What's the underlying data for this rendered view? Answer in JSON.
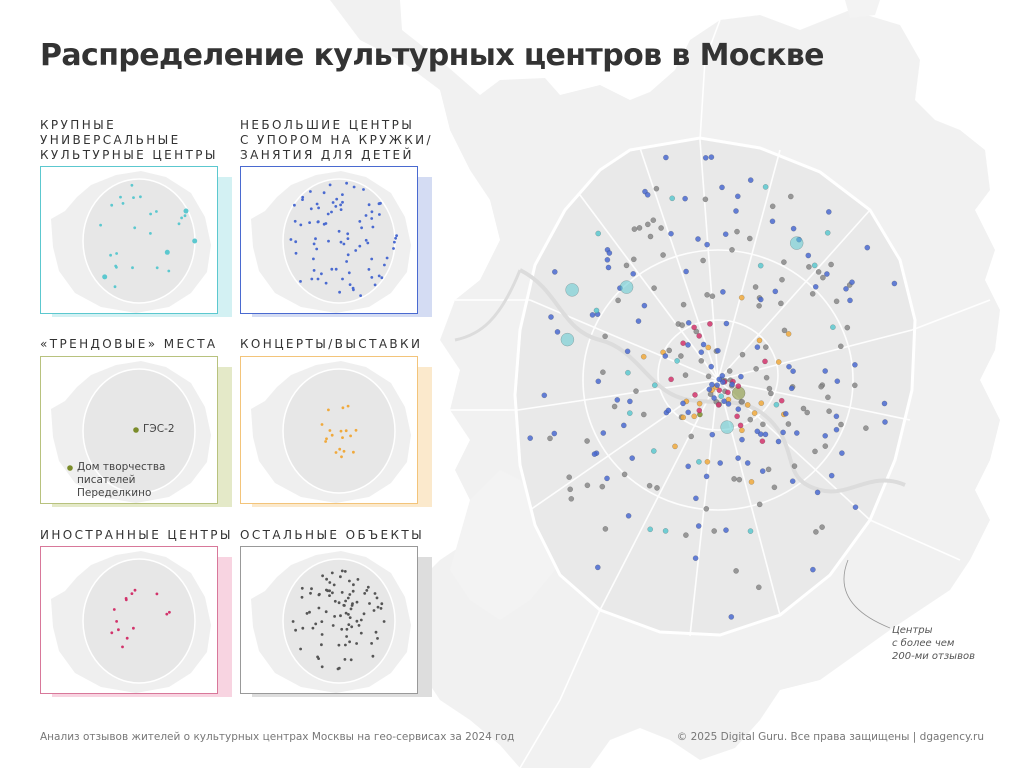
{
  "title": "Распределение культурных центров в Москве",
  "panels": [
    {
      "id": "large",
      "label_lines": [
        "Крупные",
        "универсальные",
        "культурные центры"
      ],
      "color": "#5cc8cf",
      "shadow": "#d3f1f3"
    },
    {
      "id": "small",
      "label_lines": [
        "Небольшие центры",
        "с упором на кружки/",
        "занятия для детей"
      ],
      "color": "#4a6ad0",
      "shadow": "#d4dcf3"
    },
    {
      "id": "trendy",
      "label_lines": [
        "«Трендовые» места"
      ],
      "color": "#7b8c2a",
      "shadow": "#e4e9c8",
      "points": [
        {
          "label": "ГЭС-2"
        },
        {
          "label_lines": [
            "Дом творчества",
            "писателей",
            "Переделкино"
          ]
        }
      ]
    },
    {
      "id": "concerts",
      "label_lines": [
        "Концерты/выставки"
      ],
      "color": "#f0a93c",
      "shadow": "#fbe9cc"
    },
    {
      "id": "foreign",
      "label_lines": [
        "Иностранные центры"
      ],
      "color": "#d2336b",
      "shadow": "#f8d4e1"
    },
    {
      "id": "other",
      "label_lines": [
        "Остальные объекты"
      ],
      "color": "#555555",
      "shadow": "#dddddd"
    }
  ],
  "annotation": {
    "lines": [
      "Центры",
      "с более чем",
      "200-ми отзывов"
    ]
  },
  "footer": {
    "left": "Анализ отзывов жителей о культурных центрах Москвы на гео-сервисах за 2024 год",
    "right": "© 2025 Digital Guru. Все права защищены | dgagency.ru"
  }
}
